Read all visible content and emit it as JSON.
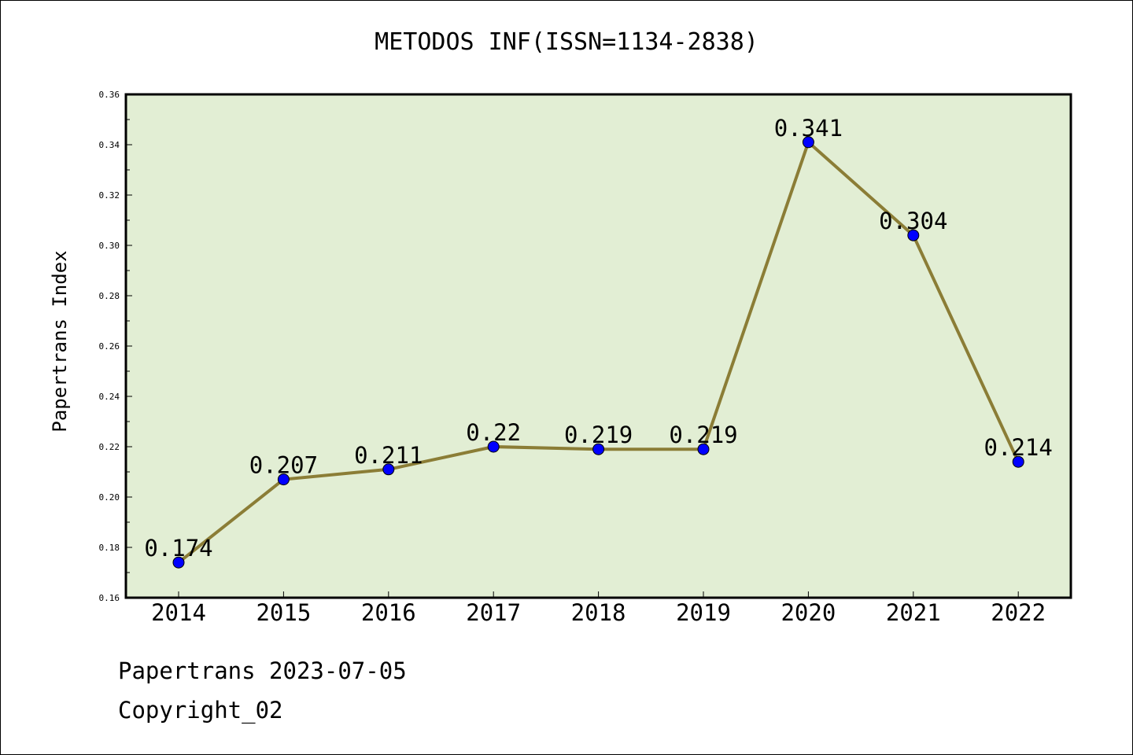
{
  "chart_data": {
    "type": "line",
    "title": "METODOS INF(ISSN=1134-2838)",
    "xlabel": "",
    "ylabel": "Papertrans Index",
    "categories": [
      "2014",
      "2015",
      "2016",
      "2017",
      "2018",
      "2019",
      "2020",
      "2021",
      "2022"
    ],
    "values": [
      0.174,
      0.207,
      0.211,
      0.22,
      0.219,
      0.219,
      0.341,
      0.304,
      0.214
    ],
    "data_labels": [
      "0.174",
      "0.207",
      "0.211",
      "0.22",
      "0.219",
      "0.219",
      "0.341",
      "0.304",
      "0.214"
    ],
    "ylim": [
      0.16,
      0.36
    ],
    "y_ticks": [
      "0.16",
      "0.18",
      "0.20",
      "0.22",
      "0.24",
      "0.26",
      "0.28",
      "0.30",
      "0.32",
      "0.34",
      "0.36"
    ],
    "grid": false,
    "colors": {
      "plot_background": "#e2eed4",
      "line": "#8b7d36",
      "marker": "#0000ff"
    }
  },
  "footer": {
    "line1": "Papertrans 2023-07-05",
    "line2": "Copyright_02"
  }
}
